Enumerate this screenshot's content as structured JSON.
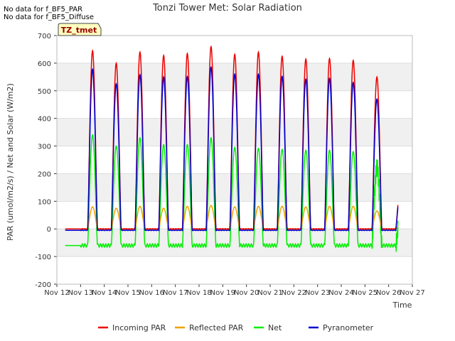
{
  "notes": [
    "No data for f_BF5_PAR",
    "No data for f_BF5_Diffuse"
  ],
  "chart_data": {
    "type": "line",
    "title": "Tonzi Tower Met: Solar Radiation",
    "xlabel": "Time",
    "ylabel": "PAR (umol/m2/s) / Net and Solar (W/m2)",
    "tag": "TZ_tmet",
    "xlim": [
      12,
      27
    ],
    "ylim": [
      -200,
      700
    ],
    "x_ticks": [
      12,
      13,
      14,
      15,
      16,
      17,
      18,
      19,
      20,
      21,
      22,
      23,
      24,
      25,
      26,
      27
    ],
    "x_tick_labels": [
      "Nov 12",
      "Nov 13",
      "Nov 14",
      "Nov 15",
      "Nov 16",
      "Nov 17",
      "Nov 18",
      "Nov 19",
      "Nov 20",
      "Nov 21",
      "Nov 22",
      "Nov 23",
      "Nov 24",
      "Nov 25",
      "Nov 26",
      "Nov 27"
    ],
    "y_ticks": [
      -200,
      -100,
      0,
      100,
      200,
      300,
      400,
      500,
      600,
      700
    ],
    "grid": true,
    "legend_position": "bottom",
    "x_units": "day of November",
    "daily_peaks": {
      "day": [
        13,
        14,
        15,
        16,
        17,
        18,
        19,
        20,
        21,
        22,
        23,
        24,
        25,
        26
      ],
      "Incoming PAR": [
        645,
        600,
        640,
        628,
        635,
        660,
        632,
        640,
        625,
        615,
        617,
        610,
        550,
        150
      ],
      "Reflected PAR": [
        80,
        75,
        82,
        75,
        82,
        85,
        80,
        82,
        82,
        80,
        82,
        82,
        65,
        20
      ],
      "Net": [
        340,
        300,
        330,
        305,
        305,
        330,
        295,
        292,
        288,
        285,
        285,
        280,
        220,
        35
      ],
      "Pyranometer": [
        578,
        525,
        558,
        550,
        552,
        585,
        560,
        560,
        552,
        542,
        545,
        530,
        470,
        140
      ]
    },
    "night_levels": {
      "Incoming PAR": 0,
      "Reflected PAR": 0,
      "Net": -60,
      "Pyranometer": -5
    },
    "series": [
      {
        "name": "Incoming PAR",
        "color": "#ee0000"
      },
      {
        "name": "Reflected PAR",
        "color": "#f0a000"
      },
      {
        "name": "Net",
        "color": "#00ee00"
      },
      {
        "name": "Pyranometer",
        "color": "#0000cc"
      }
    ]
  }
}
